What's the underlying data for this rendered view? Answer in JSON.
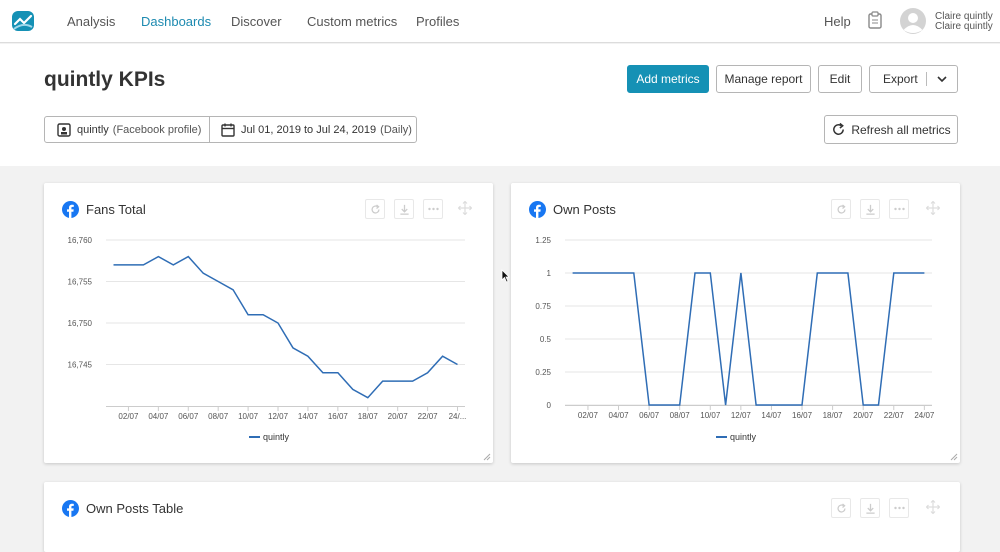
{
  "nav": {
    "items": [
      "Analysis",
      "Dashboards",
      "Discover",
      "Custom metrics",
      "Profiles"
    ],
    "active_index": 1,
    "help": "Help",
    "user_line1": "Claire quintly",
    "user_line2": "Claire quintly"
  },
  "header": {
    "title": "quintly KPIs",
    "buttons": {
      "add_metrics": "Add metrics",
      "manage_report": "Manage report",
      "edit": "Edit",
      "export": "Export",
      "refresh": "Refresh all metrics"
    },
    "filter": {
      "profile_name": "quintly",
      "profile_type": "(Facebook profile)",
      "date_range": "Jul 01, 2019 to Jul 24, 2019",
      "interval": "(Daily)"
    }
  },
  "cards": {
    "fans_total": {
      "title": "Fans Total"
    },
    "own_posts": {
      "title": "Own Posts"
    },
    "own_posts_table": {
      "title": "Own Posts Table"
    }
  },
  "colors": {
    "accent": "#1591b5",
    "line": "#2f6db5",
    "facebook": "#1877f2"
  },
  "chart_data": [
    {
      "type": "line",
      "title": "Fans Total",
      "categories": [
        "01/07",
        "02/07",
        "03/07",
        "04/07",
        "05/07",
        "06/07",
        "07/07",
        "08/07",
        "09/07",
        "10/07",
        "11/07",
        "12/07",
        "13/07",
        "14/07",
        "15/07",
        "16/07",
        "17/07",
        "18/07",
        "19/07",
        "20/07",
        "21/07",
        "22/07",
        "23/07",
        "24/07"
      ],
      "tick_labels": [
        "02/07",
        "04/07",
        "06/07",
        "08/07",
        "10/07",
        "12/07",
        "14/07",
        "16/07",
        "18/07",
        "20/07",
        "22/07",
        "24/..."
      ],
      "ytick_labels": [
        "16,760",
        "16,755",
        "16,750",
        "16,745"
      ],
      "series": [
        {
          "name": "quintly",
          "values": [
            16757,
            16757,
            16757,
            16758,
            16757,
            16758,
            16756,
            16755,
            16754,
            16751,
            16751,
            16750,
            16747,
            16746,
            16744,
            16744,
            16742,
            16741,
            16743,
            16743,
            16743,
            16744,
            16746,
            16745
          ]
        }
      ],
      "ylim": [
        16740,
        16760
      ],
      "legend": "bottom"
    },
    {
      "type": "line",
      "title": "Own Posts",
      "categories": [
        "01/07",
        "02/07",
        "03/07",
        "04/07",
        "05/07",
        "06/07",
        "07/07",
        "08/07",
        "09/07",
        "10/07",
        "11/07",
        "12/07",
        "13/07",
        "14/07",
        "15/07",
        "16/07",
        "17/07",
        "18/07",
        "19/07",
        "20/07",
        "21/07",
        "22/07",
        "23/07",
        "24/07"
      ],
      "tick_labels": [
        "02/07",
        "04/07",
        "06/07",
        "08/07",
        "10/07",
        "12/07",
        "14/07",
        "16/07",
        "18/07",
        "20/07",
        "22/07",
        "24/07"
      ],
      "ytick_labels": [
        "1.25",
        "1",
        "0.75",
        "0.5",
        "0.25",
        "0"
      ],
      "series": [
        {
          "name": "quintly",
          "values": [
            1,
            1,
            1,
            1,
            1,
            0,
            0,
            0,
            1,
            1,
            0,
            1,
            0,
            0,
            0,
            0,
            1,
            1,
            1,
            0,
            0,
            1,
            1,
            1
          ]
        }
      ],
      "ylim": [
        0,
        1.25
      ],
      "legend": "bottom"
    }
  ]
}
